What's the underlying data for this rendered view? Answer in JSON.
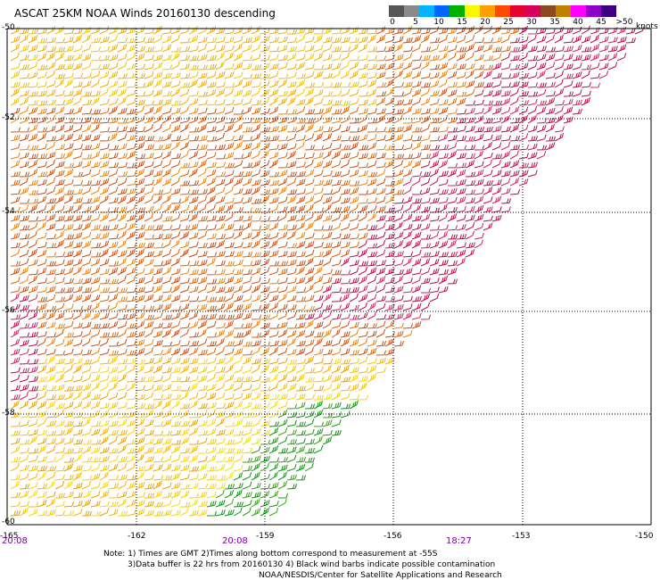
{
  "title": "ASCAT 25KM NOAA Winds 20160130 descending",
  "legend": {
    "ticks": [
      "0",
      "5",
      "10",
      "15",
      "20",
      "25",
      "30",
      "35",
      "40",
      "45",
      ">50"
    ],
    "units": "knots",
    "colors": [
      "#555555",
      "#8a8a8a",
      "#00b4ff",
      "#0066ff",
      "#00b000",
      "#f8f800",
      "#ffa000",
      "#ff4a00",
      "#e80030",
      "#d4005c",
      "#8c4a20",
      "#c08000",
      "#ff00ff",
      "#9000c8",
      "#3c0080"
    ]
  },
  "map": {
    "lat_labels": [
      "-50",
      "-52",
      "-54",
      "-56",
      "-58",
      "-60"
    ],
    "lon_labels": [
      "-165",
      "-162",
      "-159",
      "-156",
      "-153",
      "-150"
    ],
    "time_labels": [
      "20:08",
      "20:08",
      "18:27"
    ]
  },
  "notes": {
    "line1": "Note: 1) Times are GMT 2)Times along bottom correspond to measurement at -55S",
    "line2": "3)Data buffer is 22 hrs from 20160130 4) Black wind barbs indicate possible contamination",
    "line3": "NOAA/NESDIS/Center for Satellite Applications and Research"
  }
}
